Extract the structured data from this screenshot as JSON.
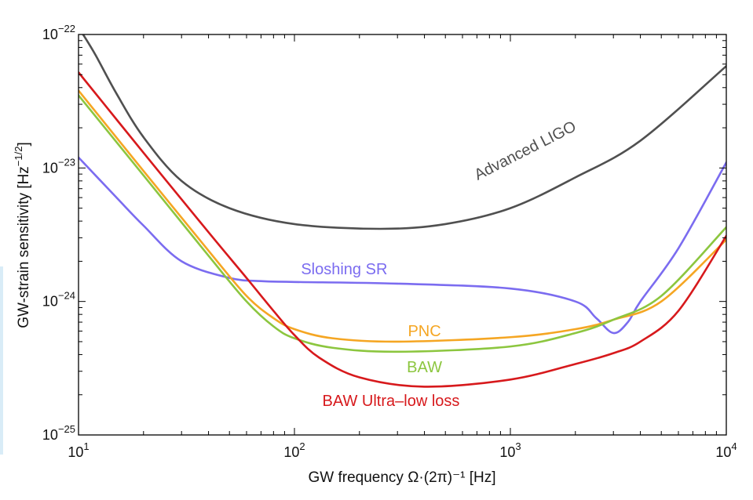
{
  "chart_data": {
    "type": "line",
    "xscale": "log",
    "yscale": "log",
    "xlim": [
      10,
      10000
    ],
    "ylim": [
      1e-25,
      1e-22
    ],
    "xlabel": "GW frequency Ω·(2π)⁻¹ [Hz]",
    "ylabel": "GW-strain sensitivity [Hz",
    "ylabel_sup": "−1/2",
    "ylabel_end": "]",
    "xticks": [
      {
        "value": 10,
        "base": "10",
        "exp": "1"
      },
      {
        "value": 100,
        "base": "10",
        "exp": "2"
      },
      {
        "value": 1000,
        "base": "10",
        "exp": "3"
      },
      {
        "value": 10000,
        "base": "10",
        "exp": "4"
      }
    ],
    "yticks": [
      {
        "value": 1e-25,
        "base": "10",
        "exp": "−25"
      },
      {
        "value": 1e-24,
        "base": "10",
        "exp": "−24"
      },
      {
        "value": 1e-23,
        "base": "10",
        "exp": "−23"
      },
      {
        "value": 1e-22,
        "base": "10",
        "exp": "−22"
      }
    ],
    "grid": false,
    "series": [
      {
        "name": "Advanced LIGO",
        "color": "#505050",
        "x": [
          10.5,
          12,
          15,
          20,
          30,
          50,
          100,
          250,
          500,
          1000,
          2000,
          4000,
          10000
        ],
        "y": [
          1e-22,
          7e-23,
          3.6e-23,
          1.7e-23,
          8e-24,
          5e-24,
          3.8e-24,
          3.5e-24,
          3.8e-24,
          5e-24,
          8.5e-24,
          1.6e-23,
          5.8e-23
        ]
      },
      {
        "name": "Sloshing SR",
        "color": "#7b6cf0",
        "x": [
          10,
          15,
          20,
          30,
          50,
          70,
          100,
          300,
          1000,
          2000,
          2500,
          3000,
          3500,
          4000,
          6000,
          10000
        ],
        "y": [
          1.2e-23,
          6e-24,
          3.7e-24,
          2e-24,
          1.5e-24,
          1.42e-24,
          1.4e-24,
          1.36e-24,
          1.25e-24,
          1e-24,
          7.5e-25,
          5.8e-25,
          7e-25,
          1e-24,
          2.5e-24,
          1.1e-23
        ]
      },
      {
        "name": "PNC",
        "color": "#f5a623",
        "x": [
          10,
          20,
          40,
          60,
          80,
          100,
          150,
          300,
          1000,
          2000,
          3000,
          5000,
          10000
        ],
        "y": [
          3.8e-23,
          9.5e-24,
          2.4e-24,
          1.1e-24,
          7.5e-25,
          6.2e-25,
          5.3e-25,
          5e-25,
          5.4e-25,
          6.2e-25,
          7.3e-25,
          1e-24,
          2.9e-24
        ]
      },
      {
        "name": "BAW",
        "color": "#8cc63f",
        "x": [
          10,
          20,
          40,
          60,
          80,
          100,
          150,
          300,
          1000,
          2000,
          3000,
          5000,
          10000
        ],
        "y": [
          3.5e-23,
          8.8e-24,
          2.2e-24,
          1e-24,
          6.5e-25,
          5.3e-25,
          4.5e-25,
          4.2e-25,
          4.6e-25,
          5.8e-25,
          7.3e-25,
          1.1e-24,
          3.6e-24
        ]
      },
      {
        "name": "BAW Ultra–low loss",
        "color": "#d7191c",
        "x": [
          10,
          20,
          40,
          60,
          80,
          100,
          130,
          200,
          400,
          1000,
          2000,
          3000,
          4000,
          6000,
          10000
        ],
        "y": [
          5.2e-23,
          1.3e-23,
          3.3e-24,
          1.5e-24,
          8.5e-25,
          5.6e-25,
          3.8e-25,
          2.7e-25,
          2.3e-25,
          2.6e-25,
          3.4e-25,
          4.1e-25,
          5e-25,
          8.5e-25,
          3.1e-24
        ]
      }
    ],
    "annotations": [
      {
        "text": "Advanced LIGO",
        "series": "Advanced LIGO",
        "x": 1200,
        "y": 1.25e-23,
        "angle": -27,
        "color": "#505050"
      },
      {
        "text": "Sloshing SR",
        "series": "Sloshing SR",
        "x": 170,
        "y": 1.6e-24,
        "angle": 0,
        "color": "#7b6cf0"
      },
      {
        "text": "PNC",
        "series": "PNC",
        "x": 400,
        "y": 5.5e-25,
        "angle": 0,
        "color": "#f5a623"
      },
      {
        "text": "BAW",
        "series": "BAW",
        "x": 400,
        "y": 2.95e-25,
        "angle": 0,
        "color": "#8cc63f"
      },
      {
        "text": "BAW Ultra–low loss",
        "series": "BAW Ultra–low loss",
        "x": 280,
        "y": 1.65e-25,
        "angle": 0,
        "color": "#d7191c"
      }
    ]
  }
}
